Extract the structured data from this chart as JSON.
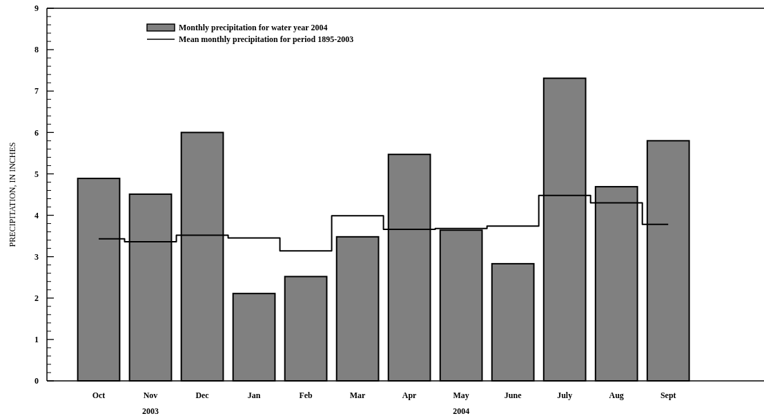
{
  "chart_data": {
    "type": "bar",
    "ylabel": "PRECIPITATION, IN INCHES",
    "categories": [
      "Oct",
      "Nov",
      "Dec",
      "Jan",
      "Feb",
      "Mar",
      "Apr",
      "May",
      "June",
      "July",
      "Aug",
      "Sept"
    ],
    "series": [
      {
        "name": "Monthly precipitation for water year 2004",
        "color": "#808080",
        "values": [
          4.89,
          4.51,
          6.0,
          2.11,
          2.52,
          3.48,
          5.47,
          3.64,
          2.83,
          7.31,
          4.69,
          5.8
        ]
      },
      {
        "name": "Mean monthly precipitation for period 1895-2003",
        "type": "step",
        "color": "#000000",
        "values": [
          3.43,
          3.36,
          3.52,
          3.45,
          3.14,
          3.99,
          3.66,
          3.68,
          3.74,
          4.48,
          4.3,
          3.78
        ]
      }
    ],
    "ylim": [
      0,
      9
    ],
    "yticks": [
      0,
      1,
      2,
      3,
      4,
      5,
      6,
      7,
      8,
      9
    ],
    "grid": false,
    "legend": "top left",
    "annotations": [
      "2003",
      "2004"
    ]
  }
}
